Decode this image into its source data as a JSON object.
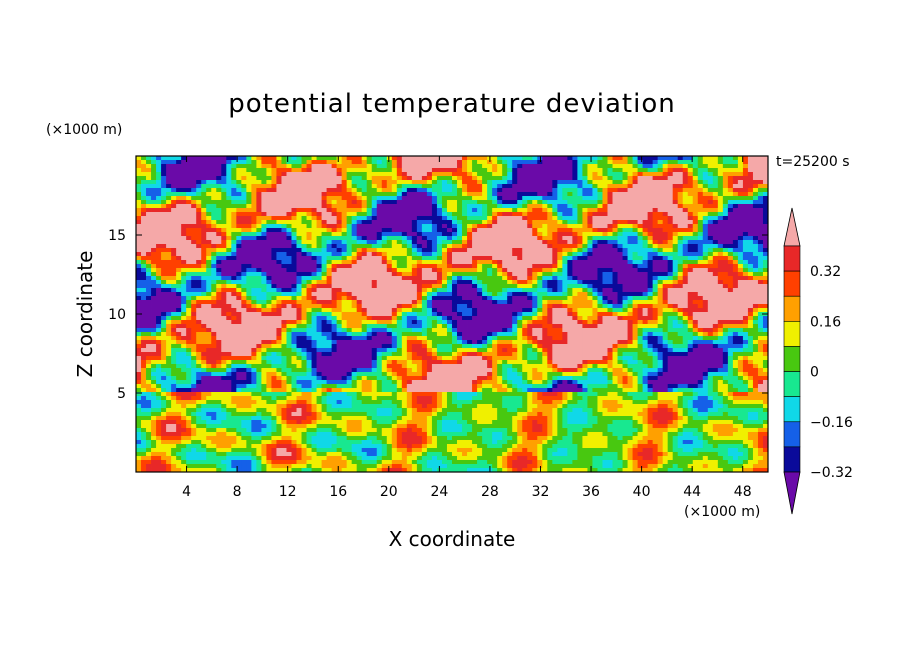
{
  "chart_data": {
    "type": "heatmap",
    "title": "potential temperature deviation",
    "xlabel": "X coordinate",
    "ylabel": "Z coordinate",
    "x_unit": "(×1000 m)",
    "y_unit": "(×1000 m)",
    "time_label": "t=25200 s",
    "xlim": [
      0,
      50
    ],
    "ylim": [
      0,
      20
    ],
    "x_ticks": [
      4,
      8,
      12,
      16,
      20,
      24,
      28,
      32,
      36,
      40,
      44,
      48
    ],
    "y_ticks": [
      5,
      10,
      15
    ],
    "grid": false,
    "colorbar": {
      "position": "right",
      "levels": [
        -0.4,
        -0.32,
        -0.24,
        -0.16,
        -0.08,
        0,
        0.08,
        0.16,
        0.24,
        0.32,
        0.4
      ],
      "labeled_levels": [
        "0.32",
        "0.16",
        "0",
        "−0.16",
        "−0.32"
      ],
      "colors": [
        "#6a0aa8",
        "#0a0a9a",
        "#1560e8",
        "#10d8e8",
        "#18e890",
        "#48c810",
        "#f0f000",
        "#ffa000",
        "#ff4000",
        "#e82828",
        "#f5a8a8"
      ],
      "extend": "both"
    }
  }
}
